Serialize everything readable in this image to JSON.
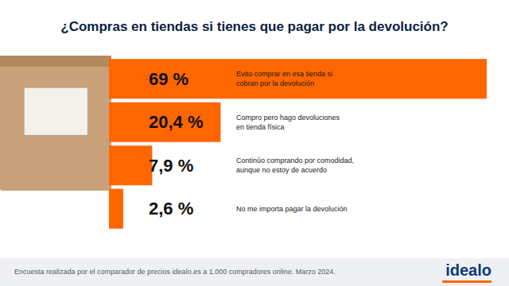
{
  "chart_data": {
    "type": "bar",
    "orientation": "horizontal",
    "title": "¿Compras en tiendas si tienes que pagar por la devolución?",
    "categories": [
      "Evito comprar en esa tienda si\ncobran por la devolución",
      "Compro pero hago devoluciones\nen tienda física",
      "Continúo comprando por comodidad,\naunque no estoy de acuerdo",
      "No me importa pagar la devolución"
    ],
    "values": [
      69,
      20.4,
      7.9,
      2.6
    ],
    "value_labels": [
      "69 %",
      "20,4 %",
      "7,9 %",
      "2,6 %"
    ],
    "data_labels": true,
    "color": "#ff6600",
    "xlim": [
      0,
      69
    ],
    "tick_labels": false,
    "grid": false
  },
  "footer": {
    "source": "Encuesta realizada por el comparador de precios idealo.es a 1.000 compradores online. Marzo 2024.",
    "logo": "idealo"
  }
}
